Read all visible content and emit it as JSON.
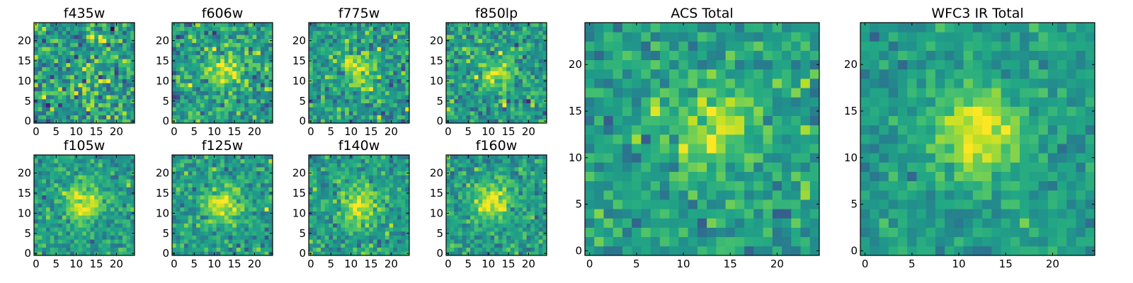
{
  "chart_data": [
    {
      "type": "heatmap",
      "title": "f435w",
      "xticks": [
        "0",
        "5",
        "10",
        "15",
        "20"
      ],
      "yticks": [
        "0",
        "5",
        "10",
        "15",
        "20"
      ],
      "xlim": [
        -0.5,
        24.5
      ],
      "ylim": [
        -0.5,
        24.5
      ],
      "grid": false,
      "colormap": "viridis",
      "source_center": [
        13,
        12
      ],
      "source_strength": 0.05,
      "noise": 0.3,
      "seed": 11
    },
    {
      "type": "heatmap",
      "title": "f606w",
      "xticks": [
        "0",
        "5",
        "10",
        "15",
        "20"
      ],
      "yticks": [
        "0",
        "5",
        "10",
        "15",
        "20"
      ],
      "xlim": [
        -0.5,
        24.5
      ],
      "ylim": [
        -0.5,
        24.5
      ],
      "grid": false,
      "colormap": "viridis",
      "source_center": [
        13,
        13
      ],
      "source_strength": 0.3,
      "noise": 0.26,
      "seed": 23
    },
    {
      "type": "heatmap",
      "title": "f775w",
      "xticks": [
        "0",
        "5",
        "10",
        "15",
        "20"
      ],
      "yticks": [
        "0",
        "5",
        "10",
        "15",
        "20"
      ],
      "xlim": [
        -0.5,
        24.5
      ],
      "ylim": [
        -0.5,
        24.5
      ],
      "grid": false,
      "colormap": "viridis",
      "source_center": [
        12,
        13
      ],
      "source_strength": 0.32,
      "noise": 0.24,
      "seed": 37
    },
    {
      "type": "heatmap",
      "title": "f850lp",
      "xticks": [
        "0",
        "5",
        "10",
        "15",
        "20"
      ],
      "yticks": [
        "0",
        "5",
        "10",
        "15",
        "20"
      ],
      "xlim": [
        -0.5,
        24.5
      ],
      "ylim": [
        -0.5,
        24.5
      ],
      "grid": false,
      "colormap": "viridis",
      "source_center": [
        12,
        12
      ],
      "source_strength": 0.3,
      "noise": 0.24,
      "seed": 41
    },
    {
      "type": "heatmap",
      "title": "f105w",
      "xticks": [
        "0",
        "5",
        "10",
        "15",
        "20"
      ],
      "yticks": [
        "0",
        "5",
        "10",
        "15",
        "20"
      ],
      "xlim": [
        -0.5,
        24.5
      ],
      "ylim": [
        -0.5,
        24.5
      ],
      "grid": false,
      "colormap": "viridis",
      "source_center": [
        12,
        12
      ],
      "source_strength": 0.42,
      "noise": 0.18,
      "seed": 53
    },
    {
      "type": "heatmap",
      "title": "f125w",
      "xticks": [
        "0",
        "5",
        "10",
        "15",
        "20"
      ],
      "yticks": [
        "0",
        "5",
        "10",
        "15",
        "20"
      ],
      "xlim": [
        -0.5,
        24.5
      ],
      "ylim": [
        -0.5,
        24.5
      ],
      "grid": false,
      "colormap": "viridis",
      "source_center": [
        12,
        12
      ],
      "source_strength": 0.4,
      "noise": 0.2,
      "seed": 67
    },
    {
      "type": "heatmap",
      "title": "f140w",
      "xticks": [
        "0",
        "5",
        "10",
        "15",
        "20"
      ],
      "yticks": [
        "0",
        "5",
        "10",
        "15",
        "20"
      ],
      "xlim": [
        -0.5,
        24.5
      ],
      "ylim": [
        -0.5,
        24.5
      ],
      "grid": false,
      "colormap": "viridis",
      "source_center": [
        12,
        12
      ],
      "source_strength": 0.42,
      "noise": 0.2,
      "seed": 79
    },
    {
      "type": "heatmap",
      "title": "f160w",
      "xticks": [
        "0",
        "5",
        "10",
        "15",
        "20"
      ],
      "yticks": [
        "0",
        "5",
        "10",
        "15",
        "20"
      ],
      "xlim": [
        -0.5,
        24.5
      ],
      "ylim": [
        -0.5,
        24.5
      ],
      "grid": false,
      "colormap": "viridis",
      "source_center": [
        11,
        13
      ],
      "source_strength": 0.42,
      "noise": 0.2,
      "seed": 83
    },
    {
      "type": "heatmap",
      "title": "ACS Total",
      "xticks": [
        "0",
        "5",
        "10",
        "15",
        "20"
      ],
      "yticks": [
        "0",
        "5",
        "10",
        "15",
        "20"
      ],
      "xlim": [
        -0.5,
        24.5
      ],
      "ylim": [
        -0.5,
        24.5
      ],
      "grid": false,
      "colormap": "viridis",
      "source_center": [
        13,
        13
      ],
      "source_strength": 0.35,
      "noise": 0.2,
      "seed": 97
    },
    {
      "type": "heatmap",
      "title": "WFC3 IR Total",
      "xticks": [
        "0",
        "5",
        "10",
        "15",
        "20"
      ],
      "yticks": [
        "0",
        "5",
        "10",
        "15",
        "20"
      ],
      "xlim": [
        -0.5,
        24.5
      ],
      "ylim": [
        -0.5,
        24.5
      ],
      "grid": false,
      "colormap": "viridis",
      "source_center": [
        12,
        13
      ],
      "source_strength": 0.45,
      "noise": 0.14,
      "seed": 101
    }
  ]
}
